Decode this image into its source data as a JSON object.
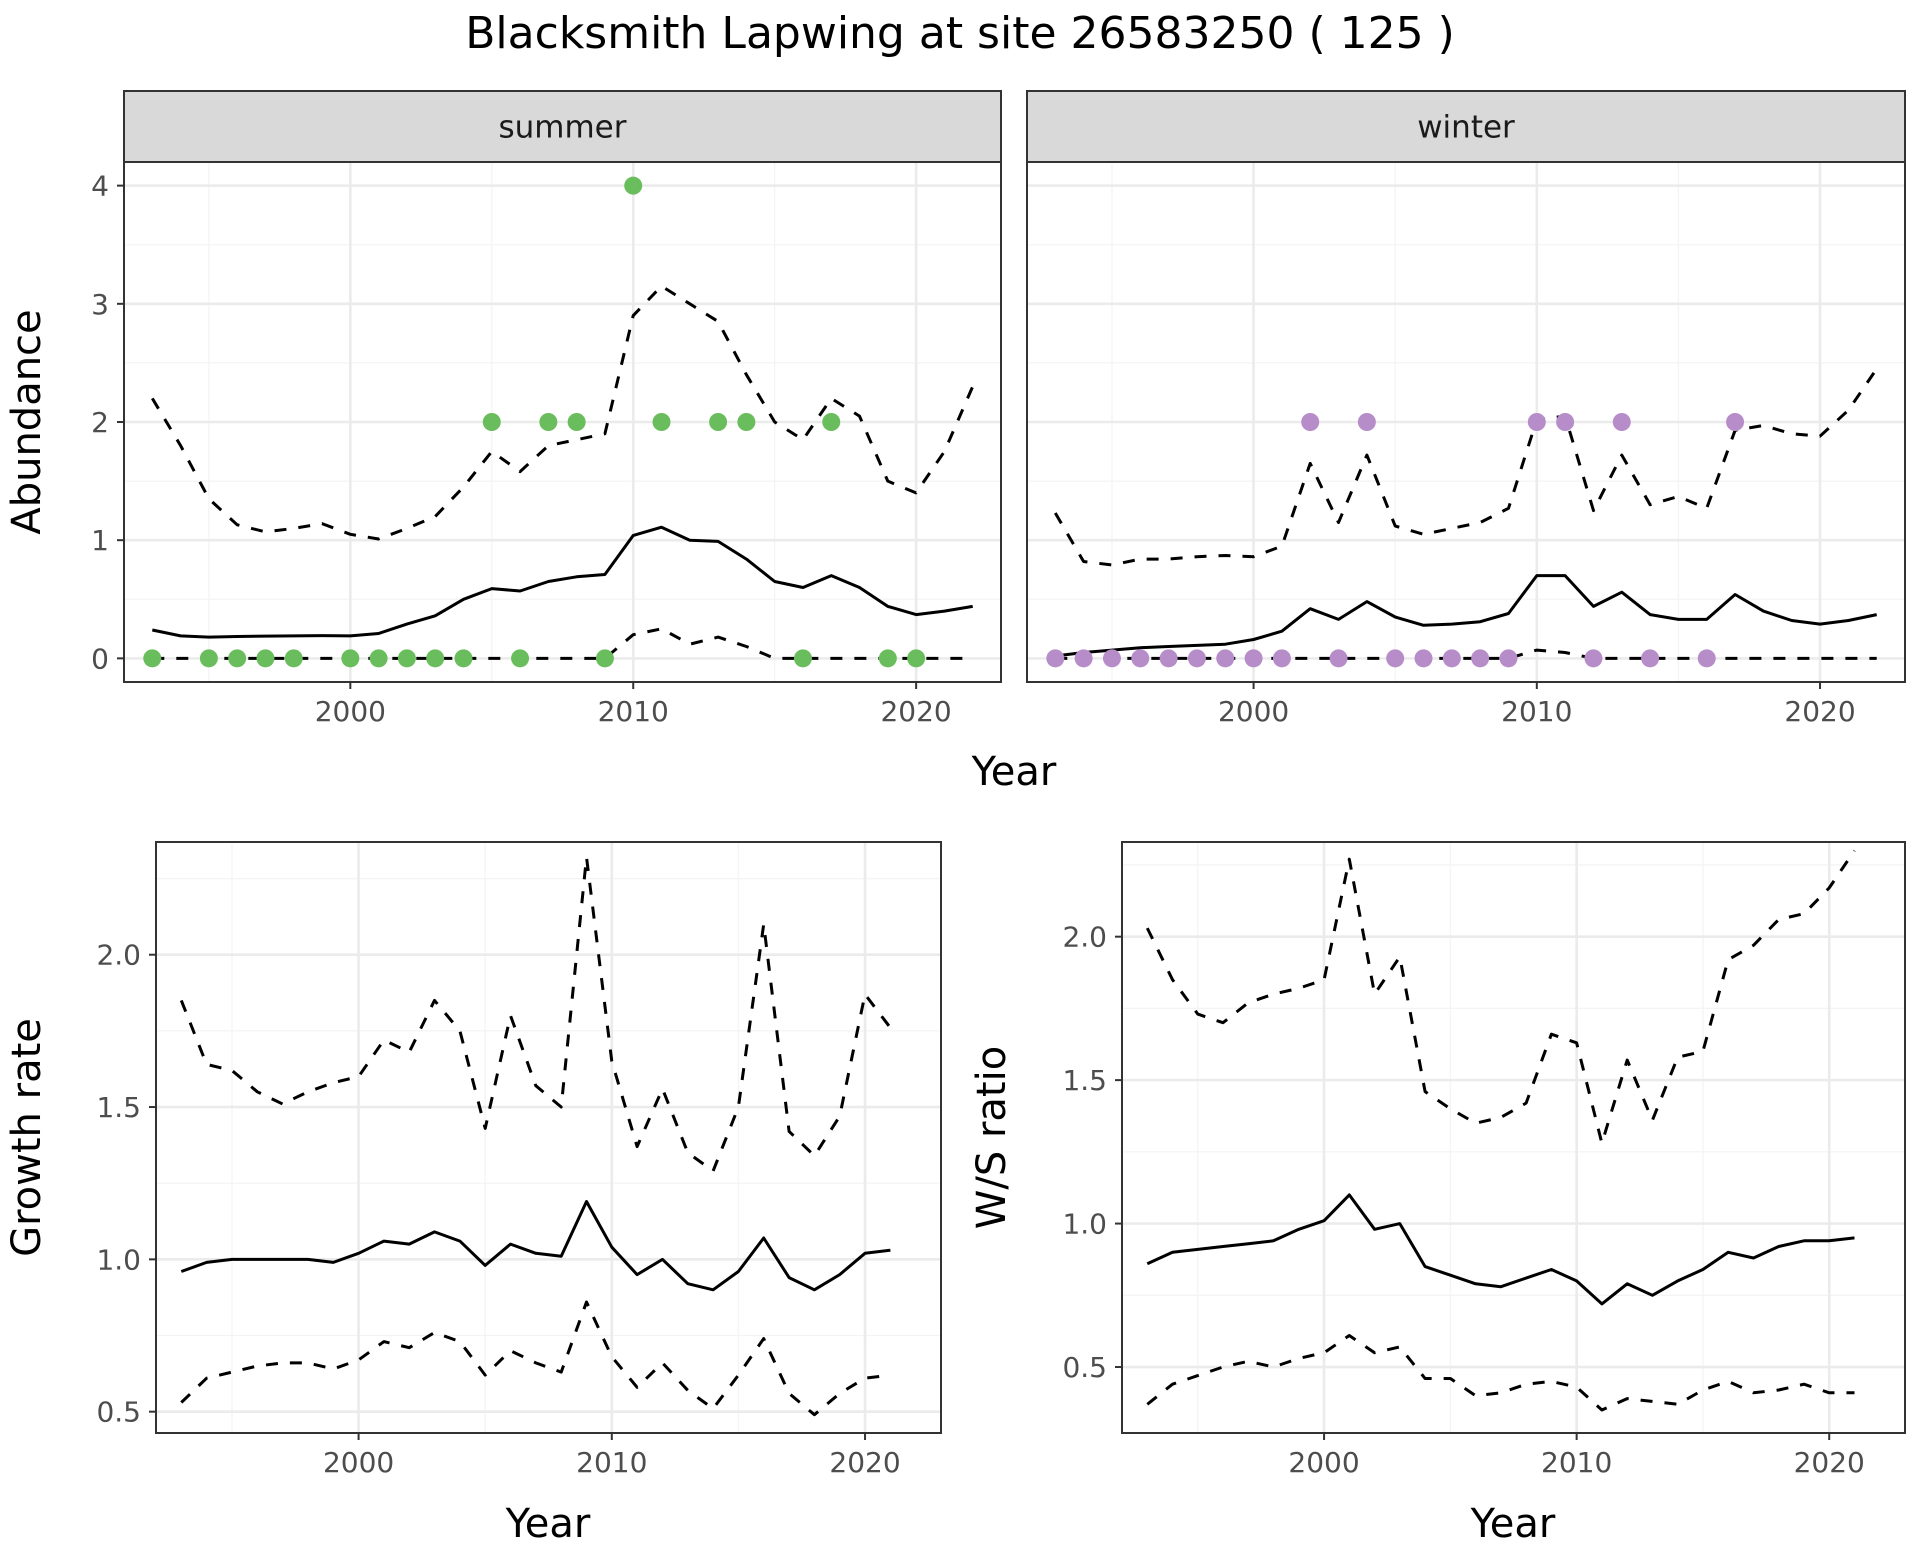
{
  "title": "Blacksmith Lapwing at site 26583250 ( 125 )",
  "colors": {
    "summer": "#6abd5c",
    "winter": "#b68dc8",
    "line": "#000000",
    "grid_major": "#ebebeb",
    "grid_minor": "#f4f4f4",
    "strip_fill": "#d9d9d9",
    "strip_border": "#333333"
  },
  "chart_data": [
    {
      "type": "line",
      "panel": "summer",
      "strip_label": "summer",
      "ylabel": "Abundance",
      "xlabel": "Year",
      "xlim": [
        1992,
        2023
      ],
      "ylim": [
        -0.2,
        4.2
      ],
      "x_ticks": [
        2000,
        2010,
        2020
      ],
      "y_ticks": [
        0,
        1,
        2,
        3,
        4
      ],
      "grid": true,
      "series": [
        {
          "style": "dashed",
          "x": [
            1993,
            1994,
            1995,
            1996,
            1997,
            1998,
            1999,
            2000,
            2001,
            2002,
            2003,
            2004,
            2005,
            2006,
            2007,
            2008,
            2009,
            2010,
            2011,
            2012,
            2013,
            2014,
            2015,
            2016,
            2017,
            2018,
            2019,
            2020,
            2021,
            2022
          ],
          "y": [
            2.2,
            1.8,
            1.35,
            1.13,
            1.07,
            1.1,
            1.14,
            1.05,
            1.01,
            1.1,
            1.2,
            1.45,
            1.75,
            1.58,
            1.8,
            1.85,
            1.9,
            2.9,
            3.15,
            3.0,
            2.85,
            2.4,
            2.0,
            1.85,
            2.2,
            2.05,
            1.5,
            1.4,
            1.75,
            2.3
          ]
        },
        {
          "style": "solid",
          "x": [
            1993,
            1994,
            1995,
            1996,
            1997,
            1998,
            1999,
            2000,
            2001,
            2002,
            2003,
            2004,
            2005,
            2006,
            2007,
            2008,
            2009,
            2010,
            2011,
            2012,
            2013,
            2014,
            2015,
            2016,
            2017,
            2018,
            2019,
            2020,
            2021,
            2022
          ],
          "y": [
            0.24,
            0.19,
            0.18,
            0.185,
            0.188,
            0.19,
            0.193,
            0.19,
            0.21,
            0.29,
            0.36,
            0.5,
            0.59,
            0.57,
            0.65,
            0.69,
            0.71,
            1.04,
            1.11,
            1.0,
            0.99,
            0.84,
            0.65,
            0.6,
            0.7,
            0.6,
            0.44,
            0.37,
            0.4,
            0.44
          ]
        },
        {
          "style": "dashed",
          "x": [
            1993,
            1994,
            1995,
            1996,
            1997,
            1998,
            1999,
            2000,
            2001,
            2002,
            2003,
            2004,
            2005,
            2006,
            2007,
            2008,
            2009,
            2010,
            2011,
            2012,
            2013,
            2014,
            2015,
            2016,
            2017,
            2018,
            2019,
            2020,
            2021,
            2022
          ],
          "y": [
            0,
            0,
            0,
            0,
            0,
            0,
            0,
            0,
            0,
            0,
            0,
            0,
            0,
            0,
            0,
            0,
            0,
            0.2,
            0.25,
            0.12,
            0.18,
            0.1,
            0,
            0,
            0,
            0,
            0,
            0,
            0,
            0
          ]
        }
      ],
      "points": {
        "x": [
          1993,
          1995,
          1996,
          1997,
          1998,
          2000,
          2001,
          2002,
          2003,
          2004,
          2005,
          2006,
          2007,
          2008,
          2009,
          2010,
          2011,
          2013,
          2014,
          2016,
          2017,
          2019,
          2020
        ],
        "y": [
          0,
          0,
          0,
          0,
          0,
          0,
          0,
          0,
          0,
          0,
          2,
          0,
          2,
          2,
          0,
          4,
          2,
          2,
          2,
          0,
          2,
          0,
          0
        ]
      }
    },
    {
      "type": "line",
      "panel": "winter",
      "strip_label": "winter",
      "xlim": [
        1992,
        2023
      ],
      "ylim": [
        -0.2,
        4.2
      ],
      "x_ticks": [
        2000,
        2010,
        2020
      ],
      "grid": true,
      "series": [
        {
          "style": "dashed",
          "x": [
            1993,
            1994,
            1995,
            1996,
            1997,
            1998,
            1999,
            2000,
            2001,
            2002,
            2003,
            2004,
            2005,
            2006,
            2007,
            2008,
            2009,
            2010,
            2011,
            2012,
            2013,
            2014,
            2015,
            2016,
            2017,
            2018,
            2019,
            2020,
            2021,
            2022
          ],
          "y": [
            1.23,
            0.82,
            0.79,
            0.84,
            0.84,
            0.86,
            0.87,
            0.86,
            0.95,
            1.65,
            1.15,
            1.72,
            1.12,
            1.05,
            1.1,
            1.15,
            1.27,
            2.02,
            2.05,
            1.25,
            1.72,
            1.3,
            1.37,
            1.27,
            1.93,
            1.97,
            1.9,
            1.88,
            2.1,
            2.45
          ]
        },
        {
          "style": "solid",
          "x": [
            1993,
            1994,
            1995,
            1996,
            1997,
            1998,
            1999,
            2000,
            2001,
            2002,
            2003,
            2004,
            2005,
            2006,
            2007,
            2008,
            2009,
            2010,
            2011,
            2012,
            2013,
            2014,
            2015,
            2016,
            2017,
            2018,
            2019,
            2020,
            2021,
            2022
          ],
          "y": [
            0.02,
            0.05,
            0.07,
            0.09,
            0.1,
            0.11,
            0.12,
            0.16,
            0.23,
            0.42,
            0.33,
            0.48,
            0.35,
            0.28,
            0.29,
            0.31,
            0.38,
            0.7,
            0.7,
            0.44,
            0.56,
            0.37,
            0.33,
            0.33,
            0.54,
            0.4,
            0.32,
            0.29,
            0.32,
            0.37
          ]
        },
        {
          "style": "dashed",
          "x": [
            1993,
            1994,
            1995,
            1996,
            1997,
            1998,
            1999,
            2000,
            2001,
            2002,
            2003,
            2004,
            2005,
            2006,
            2007,
            2008,
            2009,
            2010,
            2011,
            2012,
            2013,
            2014,
            2015,
            2016,
            2017,
            2018,
            2019,
            2020,
            2021,
            2022
          ],
          "y": [
            0,
            0,
            0,
            0,
            0,
            0,
            0,
            0,
            0,
            0,
            0,
            0,
            0,
            0,
            0,
            0,
            0,
            0.07,
            0.05,
            0,
            0,
            0,
            0,
            0,
            0,
            0,
            0,
            0,
            0,
            0
          ]
        }
      ],
      "points": {
        "x": [
          1993,
          1994,
          1995,
          1996,
          1997,
          1998,
          1999,
          2000,
          2001,
          2002,
          2003,
          2004,
          2005,
          2006,
          2007,
          2008,
          2009,
          2010,
          2011,
          2012,
          2013,
          2014,
          2016,
          2017
        ],
        "y": [
          0,
          0,
          0,
          0,
          0,
          0,
          0,
          0,
          0,
          2,
          0,
          2,
          0,
          0,
          0,
          0,
          0,
          2,
          2,
          0,
          2,
          0,
          0,
          2
        ]
      }
    },
    {
      "type": "line",
      "panel": "growth",
      "ylabel": "Growth rate",
      "xlabel": "Year",
      "xlim": [
        1992,
        2023
      ],
      "ylim": [
        0.43,
        2.37
      ],
      "x_ticks": [
        2000,
        2010,
        2020
      ],
      "y_ticks": [
        0.5,
        1.0,
        1.5,
        2.0
      ],
      "grid": true,
      "series": [
        {
          "style": "dashed",
          "x": [
            1993,
            1994,
            1995,
            1996,
            1997,
            1998,
            1999,
            2000,
            2001,
            2002,
            2003,
            2004,
            2005,
            2006,
            2007,
            2008,
            2009,
            2010,
            2011,
            2012,
            2013,
            2014,
            2015,
            2016,
            2017,
            2018,
            2019,
            2020,
            2021
          ],
          "y": [
            1.85,
            1.64,
            1.62,
            1.55,
            1.51,
            1.55,
            1.58,
            1.6,
            1.72,
            1.68,
            1.85,
            1.75,
            1.43,
            1.8,
            1.57,
            1.5,
            2.32,
            1.65,
            1.37,
            1.56,
            1.35,
            1.29,
            1.5,
            2.1,
            1.42,
            1.34,
            1.47,
            1.87,
            1.76
          ]
        },
        {
          "style": "solid",
          "x": [
            1993,
            1994,
            1995,
            1996,
            1997,
            1998,
            1999,
            2000,
            2001,
            2002,
            2003,
            2004,
            2005,
            2006,
            2007,
            2008,
            2009,
            2010,
            2011,
            2012,
            2013,
            2014,
            2015,
            2016,
            2017,
            2018,
            2019,
            2020,
            2021
          ],
          "y": [
            0.96,
            0.99,
            1.0,
            1.0,
            1.0,
            1.0,
            0.99,
            1.02,
            1.06,
            1.05,
            1.09,
            1.06,
            0.98,
            1.05,
            1.02,
            1.01,
            1.19,
            1.04,
            0.95,
            1.0,
            0.92,
            0.9,
            0.96,
            1.07,
            0.94,
            0.9,
            0.95,
            1.02,
            1.03
          ]
        },
        {
          "style": "dashed",
          "x": [
            1993,
            1994,
            1995,
            1996,
            1997,
            1998,
            1999,
            2000,
            2001,
            2002,
            2003,
            2004,
            2005,
            2006,
            2007,
            2008,
            2009,
            2010,
            2011,
            2012,
            2013,
            2014,
            2015,
            2016,
            2017,
            2018,
            2019,
            2020,
            2021
          ],
          "y": [
            0.53,
            0.61,
            0.63,
            0.65,
            0.66,
            0.66,
            0.64,
            0.67,
            0.73,
            0.71,
            0.76,
            0.73,
            0.62,
            0.7,
            0.66,
            0.63,
            0.86,
            0.68,
            0.58,
            0.66,
            0.57,
            0.51,
            0.62,
            0.74,
            0.56,
            0.49,
            0.56,
            0.61,
            0.62
          ]
        }
      ]
    },
    {
      "type": "line",
      "panel": "ws_ratio",
      "ylabel": "W/S ratio",
      "xlabel": "Year",
      "xlim": [
        1992,
        2023
      ],
      "ylim": [
        0.27,
        2.33
      ],
      "x_ticks": [
        2000,
        2010,
        2020
      ],
      "y_ticks": [
        0.5,
        1.0,
        1.5,
        2.0
      ],
      "grid": true,
      "series": [
        {
          "style": "dashed",
          "x": [
            1993,
            1994,
            1995,
            1996,
            1997,
            1998,
            1999,
            2000,
            2001,
            2002,
            2003,
            2004,
            2005,
            2006,
            2007,
            2008,
            2009,
            2010,
            2011,
            2012,
            2013,
            2014,
            2015,
            2016,
            2017,
            2018,
            2019,
            2020,
            2021
          ],
          "y": [
            2.03,
            1.85,
            1.73,
            1.7,
            1.77,
            1.8,
            1.82,
            1.85,
            2.27,
            1.8,
            1.93,
            1.46,
            1.4,
            1.35,
            1.37,
            1.42,
            1.66,
            1.63,
            1.28,
            1.57,
            1.36,
            1.58,
            1.6,
            1.92,
            1.97,
            2.06,
            2.08,
            2.17,
            2.3
          ]
        },
        {
          "style": "solid",
          "x": [
            1993,
            1994,
            1995,
            1996,
            1997,
            1998,
            1999,
            2000,
            2001,
            2002,
            2003,
            2004,
            2005,
            2006,
            2007,
            2008,
            2009,
            2010,
            2011,
            2012,
            2013,
            2014,
            2015,
            2016,
            2017,
            2018,
            2019,
            2020,
            2021
          ],
          "y": [
            0.86,
            0.9,
            0.91,
            0.92,
            0.93,
            0.94,
            0.98,
            1.01,
            1.1,
            0.98,
            1.0,
            0.85,
            0.82,
            0.79,
            0.78,
            0.81,
            0.84,
            0.8,
            0.72,
            0.79,
            0.75,
            0.8,
            0.84,
            0.9,
            0.88,
            0.92,
            0.94,
            0.94,
            0.95
          ]
        },
        {
          "style": "dashed",
          "x": [
            1993,
            1994,
            1995,
            1996,
            1997,
            1998,
            1999,
            2000,
            2001,
            2002,
            2003,
            2004,
            2005,
            2006,
            2007,
            2008,
            2009,
            2010,
            2011,
            2012,
            2013,
            2014,
            2015,
            2016,
            2017,
            2018,
            2019,
            2020,
            2021
          ],
          "y": [
            0.37,
            0.44,
            0.47,
            0.5,
            0.52,
            0.5,
            0.53,
            0.55,
            0.61,
            0.55,
            0.57,
            0.46,
            0.46,
            0.4,
            0.41,
            0.44,
            0.45,
            0.43,
            0.35,
            0.39,
            0.38,
            0.37,
            0.42,
            0.45,
            0.41,
            0.42,
            0.44,
            0.41,
            0.41
          ]
        }
      ]
    }
  ]
}
